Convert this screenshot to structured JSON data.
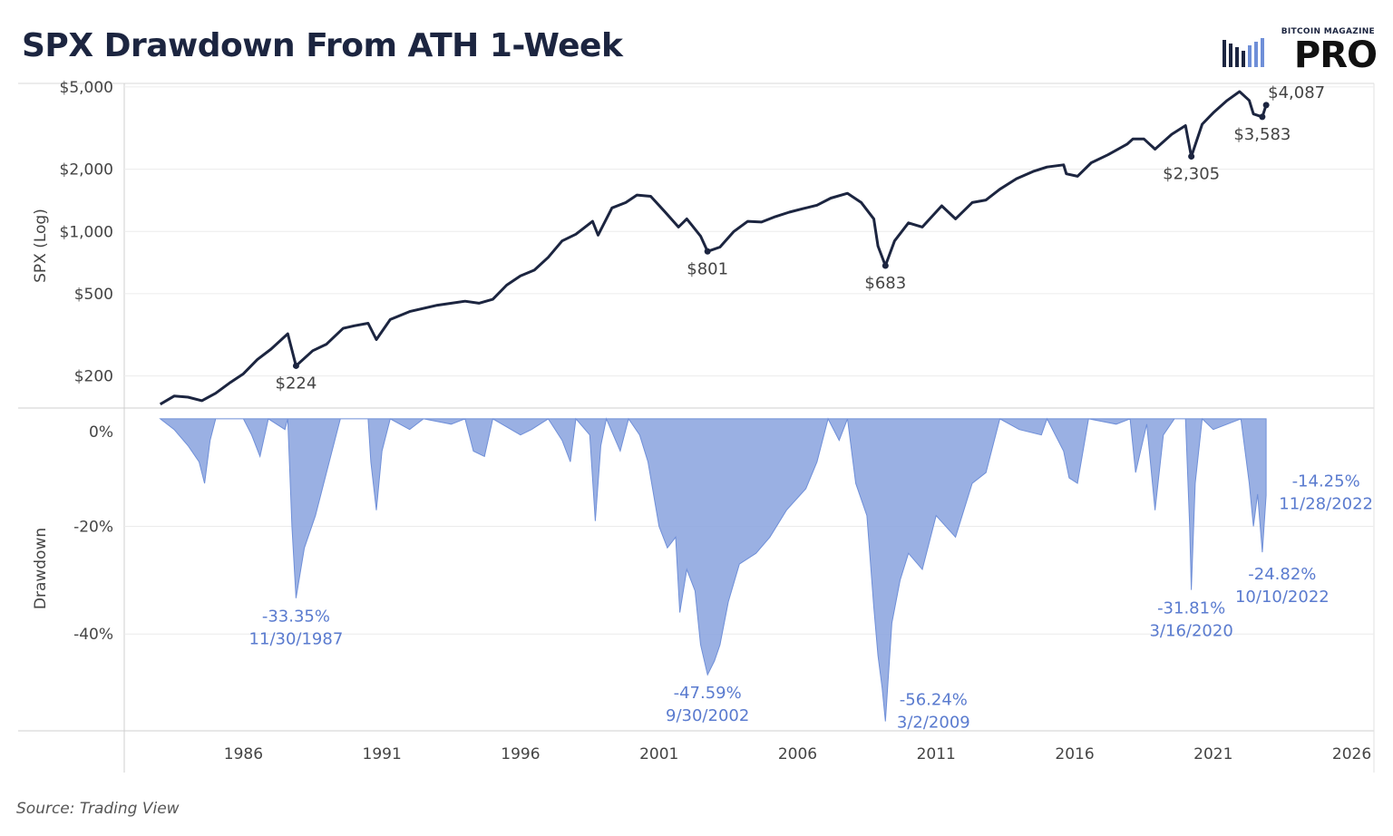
{
  "header": {
    "title": "SPX Drawdown From ATH 1-Week",
    "logo_small": "BITCOIN MAGAZINE",
    "logo_big": "PRO"
  },
  "footer": {
    "source": "Source: Trading View"
  },
  "colors": {
    "line": "#1c2540",
    "area": "#8fa7e0",
    "area_stroke": "#6f8fd8",
    "annotation_blue": "#5a7bcf",
    "grid": "#ececec"
  },
  "chart_data": [
    {
      "type": "line",
      "ylabel": "SPX (Log)",
      "yscale": "log",
      "ylim": [
        140,
        5200
      ],
      "yticks": [
        200,
        500,
        1000,
        2000,
        5000
      ],
      "ytick_labels": [
        "$200",
        "$500",
        "$1,000",
        "$2,000",
        "$5,000"
      ],
      "series": [
        {
          "values": [
            [
              1983.0,
              146
            ],
            [
              1983.5,
              160
            ],
            [
              1984.0,
              158
            ],
            [
              1984.5,
              152
            ],
            [
              1985.0,
              165
            ],
            [
              1985.5,
              185
            ],
            [
              1986.0,
              205
            ],
            [
              1986.5,
              240
            ],
            [
              1987.0,
              270
            ],
            [
              1987.6,
              320
            ],
            [
              1987.9,
              224
            ],
            [
              1988.5,
              265
            ],
            [
              1989.0,
              285
            ],
            [
              1989.6,
              340
            ],
            [
              1990.0,
              350
            ],
            [
              1990.5,
              360
            ],
            [
              1990.8,
              300
            ],
            [
              1991.3,
              375
            ],
            [
              1992.0,
              410
            ],
            [
              1993.0,
              440
            ],
            [
              1994.0,
              460
            ],
            [
              1994.5,
              450
            ],
            [
              1995.0,
              470
            ],
            [
              1995.5,
              550
            ],
            [
              1996.0,
              610
            ],
            [
              1996.5,
              650
            ],
            [
              1997.0,
              750
            ],
            [
              1997.5,
              900
            ],
            [
              1998.0,
              970
            ],
            [
              1998.6,
              1120
            ],
            [
              1998.8,
              960
            ],
            [
              1999.3,
              1300
            ],
            [
              1999.8,
              1380
            ],
            [
              2000.2,
              1500
            ],
            [
              2000.7,
              1480
            ],
            [
              2001.2,
              1250
            ],
            [
              2001.7,
              1050
            ],
            [
              2002.0,
              1150
            ],
            [
              2002.5,
              950
            ],
            [
              2002.75,
              801
            ],
            [
              2003.2,
              840
            ],
            [
              2003.7,
              1000
            ],
            [
              2004.2,
              1120
            ],
            [
              2004.7,
              1110
            ],
            [
              2005.2,
              1180
            ],
            [
              2005.7,
              1240
            ],
            [
              2006.2,
              1290
            ],
            [
              2006.7,
              1340
            ],
            [
              2007.2,
              1450
            ],
            [
              2007.8,
              1530
            ],
            [
              2008.3,
              1380
            ],
            [
              2008.75,
              1150
            ],
            [
              2008.9,
              850
            ],
            [
              2009.17,
              683
            ],
            [
              2009.5,
              900
            ],
            [
              2010.0,
              1100
            ],
            [
              2010.5,
              1050
            ],
            [
              2011.2,
              1330
            ],
            [
              2011.7,
              1150
            ],
            [
              2012.3,
              1380
            ],
            [
              2012.8,
              1420
            ],
            [
              2013.3,
              1600
            ],
            [
              2013.9,
              1800
            ],
            [
              2014.5,
              1950
            ],
            [
              2015.0,
              2050
            ],
            [
              2015.6,
              2100
            ],
            [
              2015.7,
              1900
            ],
            [
              2016.1,
              1850
            ],
            [
              2016.6,
              2150
            ],
            [
              2017.2,
              2350
            ],
            [
              2017.9,
              2650
            ],
            [
              2018.1,
              2800
            ],
            [
              2018.5,
              2800
            ],
            [
              2018.9,
              2500
            ],
            [
              2019.5,
              2950
            ],
            [
              2020.0,
              3250
            ],
            [
              2020.21,
              2305
            ],
            [
              2020.6,
              3300
            ],
            [
              2021.0,
              3750
            ],
            [
              2021.5,
              4300
            ],
            [
              2021.95,
              4750
            ],
            [
              2022.3,
              4300
            ],
            [
              2022.45,
              3700
            ],
            [
              2022.77,
              3583
            ],
            [
              2022.91,
              4087
            ]
          ]
        }
      ],
      "annotations": [
        {
          "x": 1987.9,
          "y": 224,
          "label": "$224"
        },
        {
          "x": 2002.75,
          "y": 801,
          "label": "$801"
        },
        {
          "x": 2009.17,
          "y": 683,
          "label": "$683"
        },
        {
          "x": 2020.21,
          "y": 2305,
          "label": "$2,305"
        },
        {
          "x": 2022.77,
          "y": 3583,
          "label": "$3,583"
        },
        {
          "x": 2022.91,
          "y": 4087,
          "label": "$4,087"
        }
      ]
    },
    {
      "type": "area",
      "ylabel": "Drawdown",
      "ylim": [
        -58,
        2
      ],
      "yticks": [
        0,
        -20,
        -40
      ],
      "ytick_labels": [
        "0%",
        "-20%",
        "-40%"
      ],
      "xlim": [
        1981.7,
        2026.8
      ],
      "xticks": [
        1986,
        1991,
        1996,
        2001,
        2006,
        2011,
        2016,
        2021,
        2026
      ],
      "series": [
        {
          "values": [
            [
              1983.0,
              0
            ],
            [
              1983.5,
              -2
            ],
            [
              1984.0,
              -5
            ],
            [
              1984.4,
              -8
            ],
            [
              1984.6,
              -12
            ],
            [
              1984.8,
              -4
            ],
            [
              1985.0,
              0
            ],
            [
              1986.0,
              0
            ],
            [
              1986.3,
              -3
            ],
            [
              1986.6,
              -7
            ],
            [
              1986.9,
              0
            ],
            [
              1987.5,
              -2
            ],
            [
              1987.6,
              0
            ],
            [
              1987.75,
              -20
            ],
            [
              1987.9,
              -33.35
            ],
            [
              1988.2,
              -24
            ],
            [
              1988.6,
              -18
            ],
            [
              1989.0,
              -10
            ],
            [
              1989.5,
              0
            ],
            [
              1990.5,
              0
            ],
            [
              1990.6,
              -8
            ],
            [
              1990.8,
              -17
            ],
            [
              1991.0,
              -6
            ],
            [
              1991.3,
              0
            ],
            [
              1992.0,
              -2
            ],
            [
              1992.5,
              0
            ],
            [
              1993.5,
              -1
            ],
            [
              1994.0,
              0
            ],
            [
              1994.3,
              -6
            ],
            [
              1994.7,
              -7
            ],
            [
              1995.0,
              0
            ],
            [
              1996.0,
              -3
            ],
            [
              1996.4,
              -2
            ],
            [
              1997.0,
              0
            ],
            [
              1997.5,
              -4
            ],
            [
              1997.8,
              -8
            ],
            [
              1998.0,
              0
            ],
            [
              1998.5,
              -3
            ],
            [
              1998.7,
              -19
            ],
            [
              1998.9,
              -5
            ],
            [
              1999.1,
              0
            ],
            [
              1999.6,
              -6
            ],
            [
              1999.9,
              0
            ],
            [
              2000.3,
              -3
            ],
            [
              2000.6,
              -8
            ],
            [
              2001.0,
              -20
            ],
            [
              2001.3,
              -24
            ],
            [
              2001.6,
              -22
            ],
            [
              2001.75,
              -36
            ],
            [
              2002.0,
              -28
            ],
            [
              2002.3,
              -32
            ],
            [
              2002.5,
              -42
            ],
            [
              2002.75,
              -47.59
            ],
            [
              2003.0,
              -45
            ],
            [
              2003.2,
              -42
            ],
            [
              2003.5,
              -34
            ],
            [
              2003.9,
              -27
            ],
            [
              2004.5,
              -25
            ],
            [
              2005.0,
              -22
            ],
            [
              2005.6,
              -17
            ],
            [
              2006.3,
              -13
            ],
            [
              2006.7,
              -8
            ],
            [
              2007.1,
              0
            ],
            [
              2007.5,
              -4
            ],
            [
              2007.8,
              0
            ],
            [
              2008.1,
              -12
            ],
            [
              2008.5,
              -18
            ],
            [
              2008.75,
              -35
            ],
            [
              2008.9,
              -44
            ],
            [
              2009.05,
              -50
            ],
            [
              2009.17,
              -56.24
            ],
            [
              2009.4,
              -38
            ],
            [
              2009.7,
              -30
            ],
            [
              2010.0,
              -25
            ],
            [
              2010.5,
              -28
            ],
            [
              2011.0,
              -18
            ],
            [
              2011.7,
              -22
            ],
            [
              2012.3,
              -12
            ],
            [
              2012.8,
              -10
            ],
            [
              2013.3,
              0
            ],
            [
              2014.0,
              -2
            ],
            [
              2014.8,
              -3
            ],
            [
              2015.0,
              0
            ],
            [
              2015.6,
              -6
            ],
            [
              2015.8,
              -11
            ],
            [
              2016.1,
              -12
            ],
            [
              2016.5,
              0
            ],
            [
              2017.5,
              -1
            ],
            [
              2018.0,
              0
            ],
            [
              2018.2,
              -10
            ],
            [
              2018.6,
              -1
            ],
            [
              2018.9,
              -17
            ],
            [
              2019.2,
              -3
            ],
            [
              2019.6,
              0
            ],
            [
              2020.0,
              0
            ],
            [
              2020.15,
              -20
            ],
            [
              2020.21,
              -31.81
            ],
            [
              2020.35,
              -12
            ],
            [
              2020.6,
              0
            ],
            [
              2021.0,
              -2
            ],
            [
              2021.5,
              -1
            ],
            [
              2022.0,
              0
            ],
            [
              2022.3,
              -12
            ],
            [
              2022.45,
              -20
            ],
            [
              2022.6,
              -14
            ],
            [
              2022.77,
              -24.82
            ],
            [
              2022.91,
              -14.25
            ]
          ]
        }
      ],
      "annotations": [
        {
          "x": 1987.9,
          "y": -33.35,
          "value": "-33.35%",
          "date": "11/30/1987"
        },
        {
          "x": 2002.75,
          "y": -47.59,
          "value": "-47.59%",
          "date": "9/30/2002"
        },
        {
          "x": 2009.17,
          "y": -56.24,
          "value": "-56.24%",
          "date": "3/2/2009"
        },
        {
          "x": 2020.21,
          "y": -31.81,
          "value": "-31.81%",
          "date": "3/16/2020"
        },
        {
          "x": 2022.77,
          "y": -24.82,
          "value": "-24.82%",
          "date": "10/10/2022"
        },
        {
          "x": 2022.91,
          "y": -14.25,
          "value": "-14.25%",
          "date": "11/28/2022"
        }
      ]
    }
  ]
}
